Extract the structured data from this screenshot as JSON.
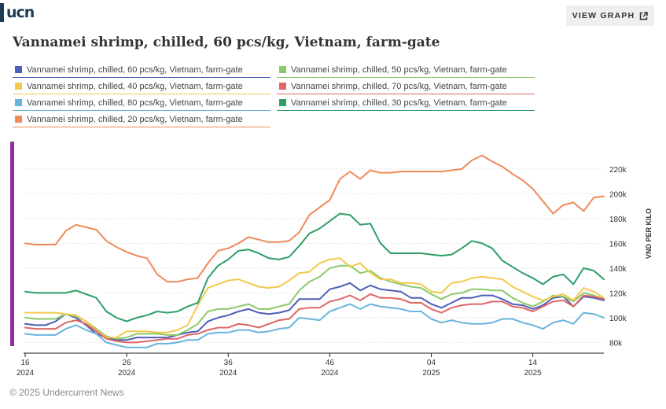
{
  "brand": {
    "name": "ucn"
  },
  "header": {
    "view_graph_label": "VIEW GRAPH"
  },
  "title": "Vannamei shrimp, chilled, 60 pcs/kg, Vietnam, farm-gate",
  "footer": {
    "copyright": "© 2025 Undercurrent News"
  },
  "chart_data": {
    "type": "line",
    "ylabel": "VND PER KILO",
    "ylim": [
      72000,
      232000
    ],
    "yticks": [
      80000,
      100000,
      120000,
      140000,
      160000,
      180000,
      200000,
      220000
    ],
    "ytick_labels": [
      "80k",
      "100k",
      "120k",
      "140k",
      "160k",
      "180k",
      "200k",
      "220k"
    ],
    "x_ticks": [
      {
        "week": "16",
        "year": "2024",
        "index": 0
      },
      {
        "week": "26",
        "year": "2024",
        "index": 10
      },
      {
        "week": "36",
        "year": "2024",
        "index": 20
      },
      {
        "week": "46",
        "year": "2024",
        "index": 30
      },
      {
        "week": "04",
        "year": "2025",
        "index": 40
      },
      {
        "week": "14",
        "year": "2025",
        "index": 50
      }
    ],
    "grid": true,
    "legend_position": "top",
    "series": [
      {
        "name": "Vannamei shrimp, chilled, 60 pcs/kg, Vietnam, farm-gate",
        "color": "#4e5fb8",
        "values": [
          95000,
          94000,
          94000,
          97000,
          103000,
          100000,
          94000,
          87000,
          84000,
          82000,
          82000,
          84000,
          84000,
          84000,
          84000,
          86000,
          88000,
          89000,
          97000,
          100000,
          102000,
          105000,
          107000,
          104000,
          103000,
          104000,
          106000,
          115000,
          115000,
          115000,
          123000,
          125000,
          128000,
          122000,
          126000,
          123000,
          122000,
          121000,
          116000,
          116000,
          111000,
          108000,
          112000,
          116000,
          116000,
          118000,
          118000,
          115000,
          111000,
          110000,
          107000,
          110000,
          116000,
          117000,
          109000,
          117000,
          116000,
          114000
        ]
      },
      {
        "name": "Vannamei shrimp, chilled, 50 pcs/kg, Vietnam, farm-gate",
        "color": "#8cc96b",
        "values": [
          100000,
          99000,
          99000,
          99000,
          103000,
          101000,
          97000,
          91000,
          85000,
          83000,
          84000,
          87000,
          87000,
          87000,
          86000,
          86000,
          90000,
          95000,
          105000,
          107000,
          107000,
          109000,
          111000,
          107000,
          107000,
          109000,
          111000,
          122000,
          129000,
          133000,
          140000,
          142000,
          142000,
          136000,
          138000,
          132000,
          129000,
          127000,
          125000,
          124000,
          119000,
          115000,
          119000,
          120000,
          123000,
          123000,
          122000,
          122000,
          116000,
          112000,
          109000,
          113000,
          118000,
          117000,
          113000,
          120000,
          118000,
          115000
        ]
      },
      {
        "name": "Vannamei shrimp, chilled, 40 pcs/kg, Vietnam, farm-gate",
        "color": "#f2c94c",
        "values": [
          104000,
          104000,
          104000,
          104000,
          103000,
          102000,
          97000,
          90000,
          84000,
          84000,
          89000,
          89000,
          89000,
          88000,
          88000,
          90000,
          94000,
          110000,
          124000,
          127000,
          130000,
          131000,
          128000,
          125000,
          124000,
          125000,
          130000,
          136000,
          137000,
          144000,
          147000,
          148000,
          141000,
          144000,
          136000,
          131000,
          131000,
          128000,
          128000,
          127000,
          121000,
          120000,
          128000,
          129000,
          132000,
          133000,
          132000,
          131000,
          125000,
          121000,
          117000,
          114000,
          117000,
          119000,
          114000,
          124000,
          121000,
          116000
        ]
      },
      {
        "name": "Vannamei shrimp, chilled, 70 pcs/kg, Vietnam, farm-gate",
        "color": "#e06666",
        "values": [
          92000,
          91000,
          91000,
          91000,
          96000,
          98000,
          95000,
          89000,
          83000,
          81000,
          80000,
          80000,
          81000,
          82000,
          83000,
          83000,
          86000,
          87000,
          90000,
          92000,
          92000,
          95000,
          94000,
          92000,
          95000,
          98000,
          99000,
          107000,
          108000,
          108000,
          113000,
          115000,
          118000,
          114000,
          119000,
          116000,
          116000,
          115000,
          112000,
          112000,
          107000,
          104000,
          108000,
          110000,
          111000,
          111000,
          113000,
          113000,
          109000,
          108000,
          105000,
          109000,
          113000,
          114000,
          109000,
          118000,
          117000,
          115000
        ]
      },
      {
        "name": "Vannamei shrimp, chilled, 80 pcs/kg, Vietnam, farm-gate",
        "color": "#6ab4dd",
        "values": [
          87000,
          86000,
          86000,
          86000,
          91000,
          94000,
          90000,
          87000,
          80000,
          78000,
          76000,
          76000,
          76000,
          79000,
          79000,
          80000,
          82000,
          82000,
          87000,
          88000,
          88000,
          90000,
          90000,
          88000,
          89000,
          91000,
          92000,
          100000,
          99000,
          98000,
          105000,
          108000,
          111000,
          107000,
          111000,
          109000,
          108000,
          107000,
          105000,
          105000,
          99000,
          96000,
          98000,
          96000,
          95000,
          95000,
          96000,
          99000,
          99000,
          96000,
          94000,
          91000,
          96000,
          98000,
          95000,
          104000,
          103000,
          100000
        ]
      },
      {
        "name": "Vannamei shrimp, chilled, 30 pcs/kg, Vietnam, farm-gate",
        "color": "#2e9e68",
        "values": [
          121000,
          120000,
          120000,
          120000,
          120000,
          122000,
          119000,
          116000,
          105000,
          100000,
          97000,
          100000,
          102000,
          105000,
          104000,
          105000,
          109000,
          112000,
          132000,
          142000,
          147000,
          154000,
          155000,
          152000,
          148000,
          147000,
          149000,
          158000,
          168000,
          172000,
          178000,
          184000,
          183000,
          175000,
          176000,
          160000,
          152000,
          152000,
          152000,
          152000,
          151000,
          150000,
          151000,
          156000,
          162000,
          160000,
          156000,
          146000,
          141000,
          136000,
          132000,
          127000,
          133000,
          135000,
          127000,
          140000,
          138000,
          131000
        ]
      },
      {
        "name": "Vannamei shrimp, chilled, 20 pcs/kg, Vietnam, farm-gate",
        "color": "#ef8a5a",
        "values": [
          160000,
          159000,
          159000,
          159000,
          170000,
          175000,
          173000,
          171000,
          162000,
          157000,
          153000,
          150000,
          148000,
          135000,
          129000,
          129000,
          131000,
          132000,
          144000,
          154000,
          156000,
          160000,
          165000,
          163000,
          161000,
          161000,
          162000,
          169000,
          183000,
          189000,
          195000,
          212000,
          218000,
          212000,
          219000,
          217000,
          217000,
          218000,
          218000,
          218000,
          218000,
          218000,
          219000,
          220000,
          227000,
          231000,
          226000,
          222000,
          216000,
          211000,
          204000,
          194000,
          184000,
          191000,
          193000,
          186000,
          197000,
          198000
        ]
      }
    ]
  }
}
